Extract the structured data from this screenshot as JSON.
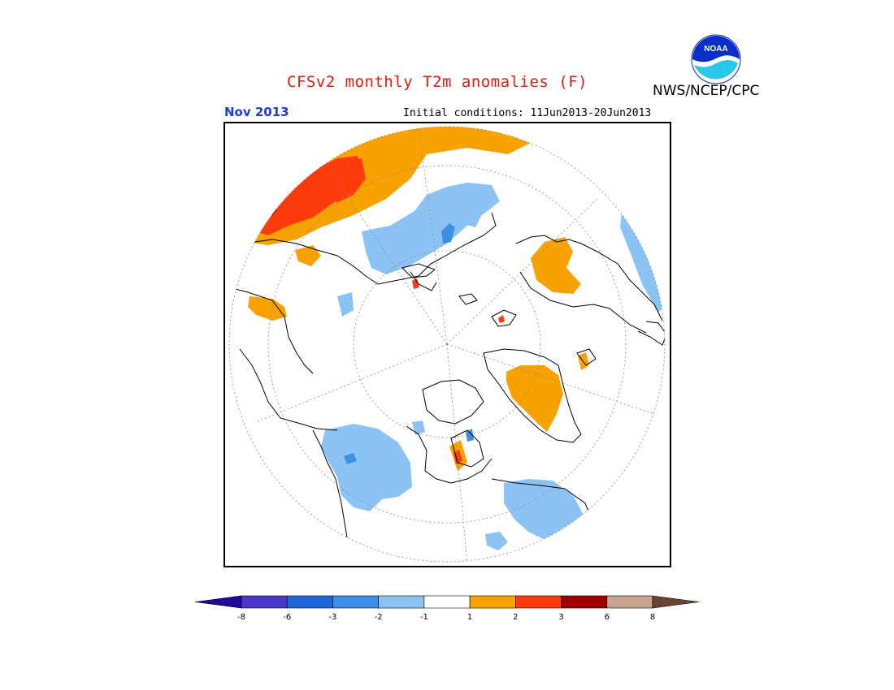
{
  "header": {
    "title": "CFSv2 monthly T2m anomalies (F)",
    "valid_month": "Nov 2013",
    "initial_conditions": "Initial conditions: 11Jun2013-20Jun2013",
    "agency": "NWS/NCEP/CPC",
    "logo_text": "NOAA"
  },
  "map": {
    "projection": "north-polar-stereographic",
    "anomaly_regions": [
      {
        "region": "northeast Russia / Siberia",
        "category": "+1 to +3"
      },
      {
        "region": "Scandinavia / northwest Russia",
        "category": "-1 to -3"
      },
      {
        "region": "Greenland",
        "category": "+1 to +2"
      },
      {
        "region": "Alaska / Bering",
        "category": "+1 to +2"
      },
      {
        "region": "western Canada",
        "category": "-1 to -3"
      },
      {
        "region": "eastern Canada / Hudson Bay",
        "category": "-1 to -2"
      },
      {
        "region": "Mediterranean / central Asia",
        "category": "-1 to -2"
      }
    ]
  },
  "colorbar": {
    "labels": [
      "-8",
      "-6",
      "-3",
      "-2",
      "-1",
      "1",
      "2",
      "3",
      "6",
      "8"
    ],
    "colors": [
      "#1e0a9a",
      "#4a37c9",
      "#1f66d8",
      "#3e8ee8",
      "#8cc3f5",
      "#ffffff",
      "#f8a200",
      "#ff3b0c",
      "#a00000",
      "#c9a292",
      "#6b4332"
    ]
  },
  "palette": {
    "title_red": "#e11a0e",
    "month_blue": "#1b3fd6",
    "pos_orange": "#f8a200",
    "pos_red": "#ff3b0c",
    "neg_lightblue": "#8cc3f5",
    "neg_blue": "#3e8ee8"
  }
}
